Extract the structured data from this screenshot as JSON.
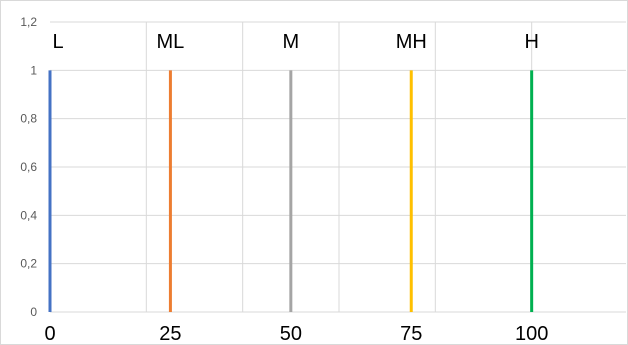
{
  "chart_data": {
    "type": "line",
    "title": "",
    "xlabel": "",
    "ylabel": "",
    "xlim": [
      0,
      120
    ],
    "ylim": [
      0,
      1.2
    ],
    "x_ticks": [
      "0",
      "25",
      "50",
      "75",
      "100"
    ],
    "x_tick_values": [
      0,
      25,
      50,
      75,
      100
    ],
    "y_ticks": [
      "0",
      "0,2",
      "0,4",
      "0,6",
      "0,8",
      "1",
      "1,2"
    ],
    "y_tick_values": [
      0,
      0.2,
      0.4,
      0.6,
      0.8,
      1.0,
      1.2
    ],
    "grid": true,
    "series": [
      {
        "name": "L",
        "color": "#4472C4",
        "x": [
          0,
          0
        ],
        "y": [
          0,
          1
        ]
      },
      {
        "name": "ML",
        "color": "#ED7D31",
        "x": [
          25,
          25
        ],
        "y": [
          0,
          1
        ]
      },
      {
        "name": "M",
        "color": "#A5A5A5",
        "x": [
          50,
          50
        ],
        "y": [
          0,
          1
        ]
      },
      {
        "name": "MH",
        "color": "#FFC000",
        "x": [
          75,
          75
        ],
        "y": [
          0,
          1
        ]
      },
      {
        "name": "H",
        "color": "#00B050",
        "x": [
          100,
          100
        ],
        "y": [
          0,
          1
        ]
      }
    ]
  }
}
